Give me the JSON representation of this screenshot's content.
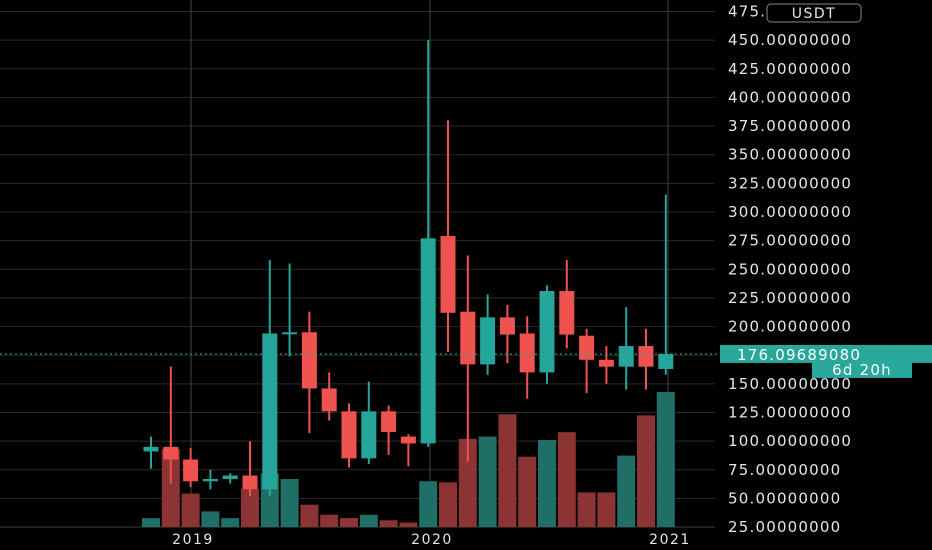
{
  "unit_label": "USDT",
  "last_price_label": "176.09689080",
  "countdown_label": "6d 20h",
  "colors": {
    "background": "#000000",
    "up": "#26a69a",
    "down": "#ef5350",
    "up_volume": "#1f6f67",
    "down_volume": "#8c3434",
    "grid": "#2a2a2a",
    "divider": "#3a3a3a",
    "price_tag": "#2aa79b"
  },
  "chart_data": {
    "type": "candlestick",
    "interval": "monthly",
    "y_tick_labels": [
      "25.00000000",
      "50.00000000",
      "75.00000000",
      "100.00000000",
      "125.00000000",
      "150.00000000",
      "175.00000000",
      "200.00000000",
      "225.00000000",
      "250.00000000",
      "275.00000000",
      "300.00000000",
      "325.00000000",
      "350.00000000",
      "375.00000000",
      "400.00000000",
      "425.00000000",
      "450.00000000",
      "475.00000000"
    ],
    "x_tick_labels": [
      "2019",
      "2020",
      "2021"
    ],
    "ylim": [
      5,
      485
    ],
    "last_price": 176.0968908,
    "candles": [
      {
        "open": 91,
        "high": 104,
        "low": 76,
        "close": 95,
        "volume": 8
      },
      {
        "open": 95,
        "high": 165,
        "low": 63,
        "close": 84,
        "volume": 70
      },
      {
        "open": 84,
        "high": 94,
        "low": 60,
        "close": 65,
        "volume": 30
      },
      {
        "open": 65,
        "high": 75,
        "low": 58,
        "close": 67,
        "volume": 14
      },
      {
        "open": 67,
        "high": 72,
        "low": 63,
        "close": 70,
        "volume": 8
      },
      {
        "open": 70,
        "high": 100,
        "low": 52,
        "close": 58,
        "volume": 34
      },
      {
        "open": 58,
        "high": 258,
        "low": 52,
        "close": 194,
        "volume": 48
      },
      {
        "open": 194,
        "high": 255,
        "low": 174,
        "close": 195,
        "volume": 43
      },
      {
        "open": 195,
        "high": 213,
        "low": 107,
        "close": 146,
        "volume": 20
      },
      {
        "open": 146,
        "high": 160,
        "low": 118,
        "close": 126,
        "volume": 11
      },
      {
        "open": 126,
        "high": 133,
        "low": 77,
        "close": 85,
        "volume": 8
      },
      {
        "open": 85,
        "high": 152,
        "low": 80,
        "close": 126,
        "volume": 11
      },
      {
        "open": 126,
        "high": 131,
        "low": 88,
        "close": 108,
        "volume": 6
      },
      {
        "open": 104,
        "high": 106,
        "low": 78,
        "close": 98,
        "volume": 4
      },
      {
        "open": 98,
        "high": 450,
        "low": 95,
        "close": 277,
        "volume": 41
      },
      {
        "open": 279,
        "high": 380,
        "low": 178,
        "close": 212,
        "volume": 40
      },
      {
        "open": 213,
        "high": 262,
        "low": 82,
        "close": 167,
        "volume": 79
      },
      {
        "open": 167,
        "high": 228,
        "low": 158,
        "close": 208,
        "volume": 81
      },
      {
        "open": 208,
        "high": 219,
        "low": 168,
        "close": 193,
        "volume": 101
      },
      {
        "open": 194,
        "high": 209,
        "low": 137,
        "close": 160,
        "volume": 63
      },
      {
        "open": 160,
        "high": 236,
        "low": 150,
        "close": 231,
        "volume": 78
      },
      {
        "open": 231,
        "high": 258,
        "low": 181,
        "close": 193,
        "volume": 85
      },
      {
        "open": 192,
        "high": 198,
        "low": 142,
        "close": 171,
        "volume": 31
      },
      {
        "open": 171,
        "high": 183,
        "low": 150,
        "close": 165,
        "volume": 31
      },
      {
        "open": 165,
        "high": 217,
        "low": 145,
        "close": 183,
        "volume": 64
      },
      {
        "open": 183,
        "high": 198,
        "low": 145,
        "close": 165,
        "volume": 100
      },
      {
        "open": 163,
        "high": 315,
        "low": 158,
        "close": 176,
        "volume": 121
      }
    ]
  }
}
